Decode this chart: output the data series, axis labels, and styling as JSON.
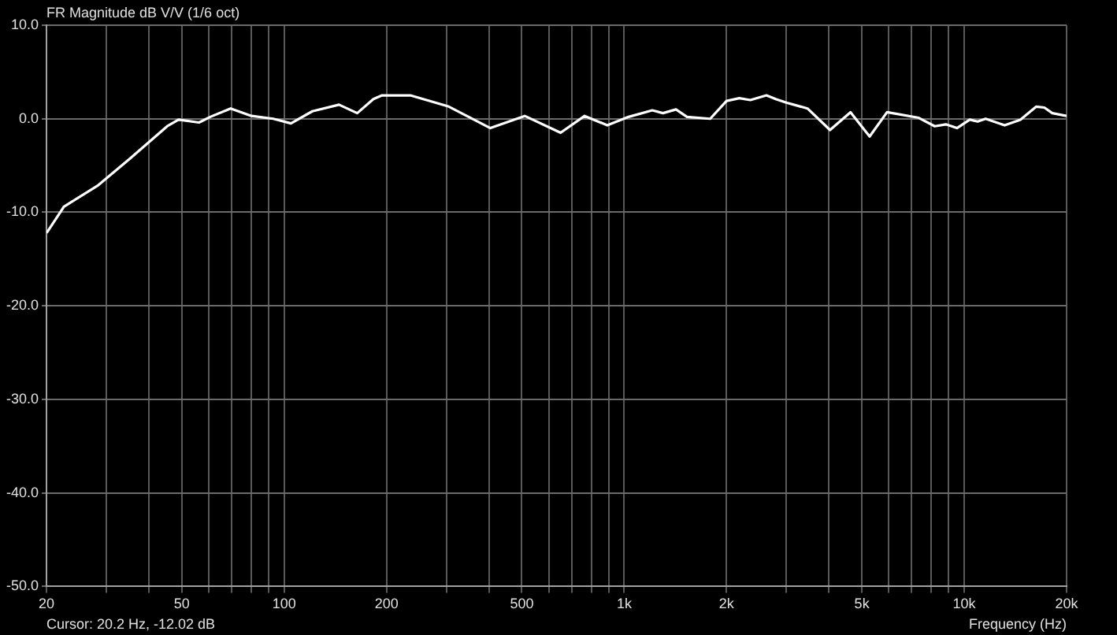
{
  "chart_data": {
    "type": "line",
    "title": "FR Magnitude dB V/V (1/6 oct)",
    "xlabel": "Frequency (Hz)",
    "annotations": [
      "Cursor: 20.2 Hz, -12.02 dB"
    ],
    "log": "x",
    "grid": true,
    "legend": false,
    "marker": "none",
    "line_style": "solid",
    "xlim": [
      20,
      20000
    ],
    "xticks": [
      20,
      {
        "value": 30,
        "label": null
      },
      {
        "value": 40,
        "label": null
      },
      50,
      {
        "value": 60,
        "label": null
      },
      {
        "value": 70,
        "label": null
      },
      {
        "value": 80,
        "label": null
      },
      {
        "value": 90,
        "label": null
      },
      100,
      200,
      {
        "value": 300,
        "label": null
      },
      {
        "value": 400,
        "label": null
      },
      500,
      {
        "value": 600,
        "label": null
      },
      {
        "value": 700,
        "label": null
      },
      {
        "value": 800,
        "label": null
      },
      {
        "value": 900,
        "label": null
      },
      {
        "value": 1000,
        "label": "1k"
      },
      {
        "value": 2000,
        "label": "2k"
      },
      {
        "value": 3000,
        "label": null
      },
      {
        "value": 4000,
        "label": null
      },
      {
        "value": 5000,
        "label": "5k"
      },
      {
        "value": 6000,
        "label": null
      },
      {
        "value": 7000,
        "label": null
      },
      {
        "value": 8000,
        "label": null
      },
      {
        "value": 9000,
        "label": null
      },
      {
        "value": 10000,
        "label": "10k"
      },
      {
        "value": 20000,
        "label": "20k"
      }
    ],
    "ylim": [
      -50,
      10
    ],
    "yticks": [
      {
        "value": -50,
        "label": "-50.0"
      },
      {
        "value": -40,
        "label": "-40.0"
      },
      {
        "value": -30,
        "label": "-30.0"
      },
      {
        "value": -20,
        "label": "-20.0"
      },
      {
        "value": -10,
        "label": "-10.0"
      },
      {
        "value": 0,
        "label": "0.0"
      },
      {
        "value": 10,
        "label": "10.0"
      }
    ],
    "series": [
      {
        "color": "#ffffff",
        "x": [
          20,
          20.2,
          22.5,
          28.4,
          35.1,
          45.3,
          48.9,
          56.2,
          60.6,
          69.6,
          80.2,
          92.9,
          104.7,
          121,
          145,
          164,
          183,
          194,
          235,
          305,
          404,
          510,
          650,
          765,
          892,
          1030,
          1210,
          1300,
          1420,
          1530,
          1790,
          2000,
          2180,
          2350,
          2620,
          2790,
          3010,
          3460,
          4030,
          4630,
          5270,
          5930,
          7350,
          8190,
          8830,
          9520,
          10380,
          10950,
          11560,
          13150,
          14630,
          16290,
          17200,
          18160,
          20000
        ],
        "values": [
          -12.2,
          -12.0,
          -9.4,
          -7.1,
          -4.3,
          -0.8,
          -0.1,
          -0.4,
          0.2,
          1.1,
          0.3,
          0,
          -0.5,
          0.8,
          1.5,
          0.6,
          2.1,
          2.5,
          2.5,
          1.3,
          -1.0,
          0.3,
          -1.5,
          0.3,
          -0.7,
          0.2,
          0.9,
          0.6,
          1.0,
          0.2,
          0,
          1.9,
          2.2,
          2.0,
          2.5,
          2.1,
          1.7,
          1.1,
          -1.2,
          0.7,
          -1.9,
          0.7,
          0.1,
          -0.8,
          -0.6,
          -1.0,
          -0.1,
          -0.3,
          0,
          -0.7,
          -0.1,
          1.3,
          1.2,
          0.6,
          0.3
        ]
      }
    ]
  }
}
